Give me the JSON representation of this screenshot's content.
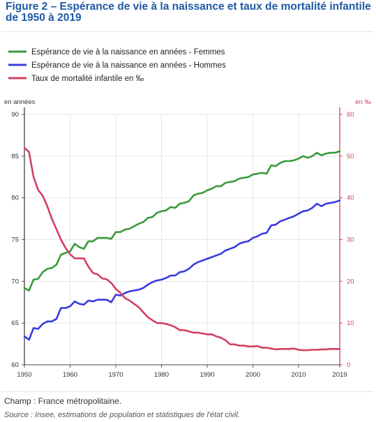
{
  "figure": {
    "title": "Figure 2 – Espérance de vie à la naissance et taux de mortalité infantile de 1950 à 2019"
  },
  "notes": {
    "champ": "Champ : France métropolitaine.",
    "source": "Source : Insee, estimations de population et statistiques de l'état civil."
  },
  "chart_data": {
    "type": "line",
    "title": "",
    "xlabel": "",
    "ylabel_left": "en années",
    "ylabel_right": "en ‰",
    "xlim": [
      1950,
      2019
    ],
    "ylim_left": [
      60,
      90
    ],
    "ylim_right": [
      0,
      60
    ],
    "x_ticks": [
      "1950",
      "1960",
      "1970",
      "1980",
      "1990",
      "2000",
      "2010",
      "2019"
    ],
    "y_left_ticks": [
      "60",
      "65",
      "70",
      "75",
      "80",
      "85",
      "90"
    ],
    "y_right_ticks": [
      "0",
      "10",
      "20",
      "30",
      "40",
      "50",
      "60"
    ],
    "grid": true,
    "legend_position": "top-left",
    "x": [
      1950,
      1951,
      1952,
      1953,
      1954,
      1955,
      1956,
      1957,
      1958,
      1959,
      1960,
      1961,
      1962,
      1963,
      1964,
      1965,
      1966,
      1967,
      1968,
      1969,
      1970,
      1971,
      1972,
      1973,
      1974,
      1975,
      1976,
      1977,
      1978,
      1979,
      1980,
      1981,
      1982,
      1983,
      1984,
      1985,
      1986,
      1987,
      1988,
      1989,
      1990,
      1991,
      1992,
      1993,
      1994,
      1995,
      1996,
      1997,
      1998,
      1999,
      2000,
      2001,
      2002,
      2003,
      2004,
      2005,
      2006,
      2007,
      2008,
      2009,
      2010,
      2011,
      2012,
      2013,
      2014,
      2015,
      2016,
      2017,
      2018,
      2019
    ],
    "series": [
      {
        "name": "Espérance de vie à la naissance en années - Femmes",
        "axis": "left",
        "color": "#3a9a3a",
        "values": [
          69.2,
          68.9,
          70.2,
          70.3,
          71.1,
          71.5,
          71.6,
          72.0,
          73.2,
          73.4,
          73.6,
          74.5,
          74.1,
          73.9,
          74.8,
          74.8,
          75.2,
          75.2,
          75.2,
          75.1,
          75.9,
          75.9,
          76.2,
          76.3,
          76.6,
          76.9,
          77.1,
          77.6,
          77.7,
          78.2,
          78.4,
          78.5,
          78.9,
          78.8,
          79.3,
          79.4,
          79.6,
          80.3,
          80.5,
          80.6,
          80.9,
          81.1,
          81.4,
          81.4,
          81.8,
          81.9,
          82.0,
          82.3,
          82.4,
          82.5,
          82.8,
          82.9,
          83.0,
          82.9,
          83.9,
          83.8,
          84.2,
          84.4,
          84.4,
          84.5,
          84.7,
          85.0,
          84.8,
          85.0,
          85.4,
          85.1,
          85.3,
          85.4,
          85.4,
          85.6
        ]
      },
      {
        "name": "Espérance de vie à la naissance en années - Hommes",
        "axis": "left",
        "color": "#3a3ae0",
        "values": [
          63.4,
          63.0,
          64.4,
          64.3,
          64.9,
          65.2,
          65.2,
          65.5,
          66.8,
          66.8,
          67.0,
          67.6,
          67.3,
          67.2,
          67.7,
          67.6,
          67.8,
          67.8,
          67.8,
          67.5,
          68.4,
          68.3,
          68.6,
          68.8,
          68.9,
          69.0,
          69.2,
          69.6,
          69.9,
          70.1,
          70.2,
          70.4,
          70.7,
          70.7,
          71.1,
          71.2,
          71.5,
          72.0,
          72.3,
          72.5,
          72.7,
          72.9,
          73.1,
          73.3,
          73.7,
          73.9,
          74.1,
          74.5,
          74.7,
          74.8,
          75.2,
          75.4,
          75.7,
          75.8,
          76.7,
          76.8,
          77.2,
          77.4,
          77.6,
          77.8,
          78.1,
          78.4,
          78.5,
          78.8,
          79.3,
          79.0,
          79.3,
          79.4,
          79.5,
          79.7
        ]
      },
      {
        "name": "Taux de mortalité infantile en ‰",
        "axis": "right",
        "color": "#d2405f",
        "values": [
          52.0,
          51.0,
          45.0,
          41.9,
          40.5,
          38.0,
          35.0,
          32.5,
          30.0,
          28.0,
          26.5,
          25.5,
          25.5,
          25.5,
          23.5,
          22.0,
          21.7,
          20.7,
          20.5,
          19.6,
          18.2,
          17.2,
          16.0,
          15.4,
          14.6,
          13.8,
          12.6,
          11.4,
          10.7,
          10.0,
          10.0,
          9.8,
          9.5,
          9.0,
          8.3,
          8.3,
          8.0,
          7.7,
          7.7,
          7.5,
          7.3,
          7.3,
          6.8,
          6.5,
          5.9,
          4.9,
          4.9,
          4.6,
          4.6,
          4.4,
          4.4,
          4.5,
          4.1,
          4.1,
          3.9,
          3.7,
          3.8,
          3.8,
          3.8,
          3.9,
          3.6,
          3.5,
          3.5,
          3.6,
          3.6,
          3.7,
          3.7,
          3.8,
          3.8,
          3.8
        ]
      }
    ]
  }
}
